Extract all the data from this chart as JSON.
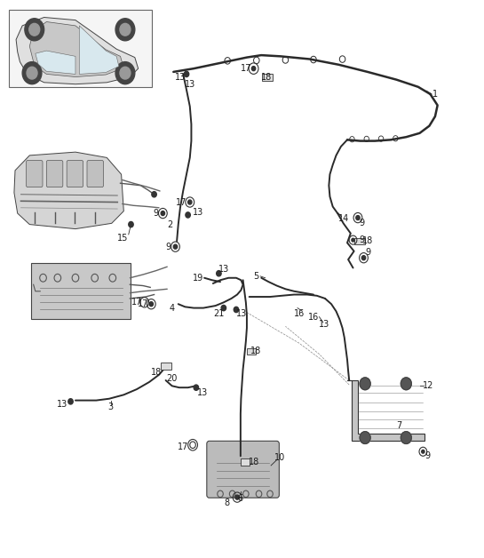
{
  "bg_color": "#ffffff",
  "line_color": "#2a2a2a",
  "label_color": "#1a1a1a"
}
